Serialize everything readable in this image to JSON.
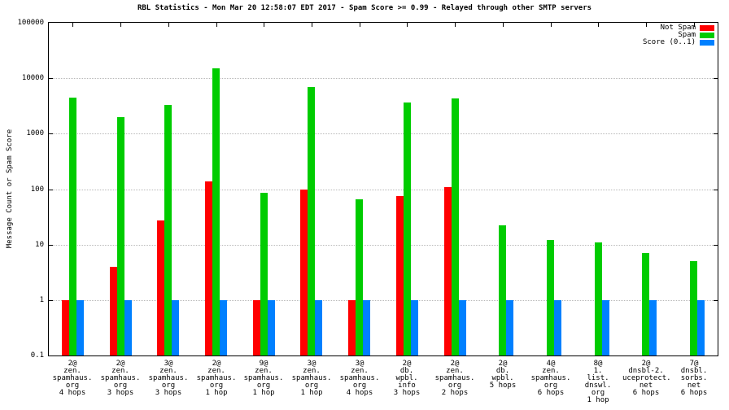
{
  "chart_data": {
    "type": "bar",
    "title": "RBL Statistics - Mon Mar 20 12:58:07 EDT 2017 - Spam Score >= 0.99 - Relayed through other SMTP servers",
    "ylabel": "Message Count or Spam Score",
    "xlabel": "",
    "y_scale": "log",
    "ylim": [
      0.1,
      100000
    ],
    "y_ticks": [
      "100000",
      "10000",
      "1000",
      "100",
      "10",
      "1",
      "0.1"
    ],
    "grid": true,
    "legend_position": "top-right",
    "categories": [
      [
        "2@",
        "zen.",
        "spamhaus.",
        "org",
        "4 hops"
      ],
      [
        "2@",
        "zen.",
        "spamhaus.",
        "org",
        "3 hops"
      ],
      [
        "3@",
        "zen.",
        "spamhaus.",
        "org",
        "3 hops"
      ],
      [
        "2@",
        "zen.",
        "spamhaus.",
        "org",
        "1 hop"
      ],
      [
        "9@",
        "zen.",
        "spamhaus.",
        "org",
        "1 hop"
      ],
      [
        "3@",
        "zen.",
        "spamhaus.",
        "org",
        "1 hop"
      ],
      [
        "3@",
        "zen.",
        "spamhaus.",
        "org",
        "4 hops"
      ],
      [
        "2@",
        "db.",
        "wpbl.",
        "info",
        "3 hops"
      ],
      [
        "2@",
        "zen.",
        "spamhaus.",
        "org",
        "2 hops"
      ],
      [
        "2@",
        "db.",
        "wpbl.",
        "5 hops"
      ],
      [
        "4@",
        "zen.",
        "spamhaus.",
        "org",
        "6 hops"
      ],
      [
        "8@",
        "1.",
        "list.",
        "dnswl.",
        "org",
        "1 hop"
      ],
      [
        "2@",
        "dnsbl-2.",
        "uceprotect.",
        "net",
        "6 hops"
      ],
      [
        "7@",
        "dnsbl.",
        "sorbs.",
        "net",
        "6 hops"
      ]
    ],
    "series": [
      {
        "name": "Not Spam",
        "color": "#ff0000",
        "values": [
          1,
          4,
          27,
          140,
          1,
          100,
          1,
          75,
          110,
          null,
          null,
          null,
          null,
          null
        ]
      },
      {
        "name": "Spam",
        "color": "#00cc00",
        "values": [
          4500,
          2000,
          3300,
          15000,
          85,
          7000,
          65,
          3600,
          4300,
          22,
          12,
          11,
          7,
          5
        ]
      },
      {
        "name": "Score (0..1)",
        "color": "#0080ff",
        "values": [
          1,
          1,
          1,
          1,
          1,
          1,
          1,
          1,
          1,
          1,
          1,
          1,
          1,
          1
        ]
      }
    ]
  }
}
